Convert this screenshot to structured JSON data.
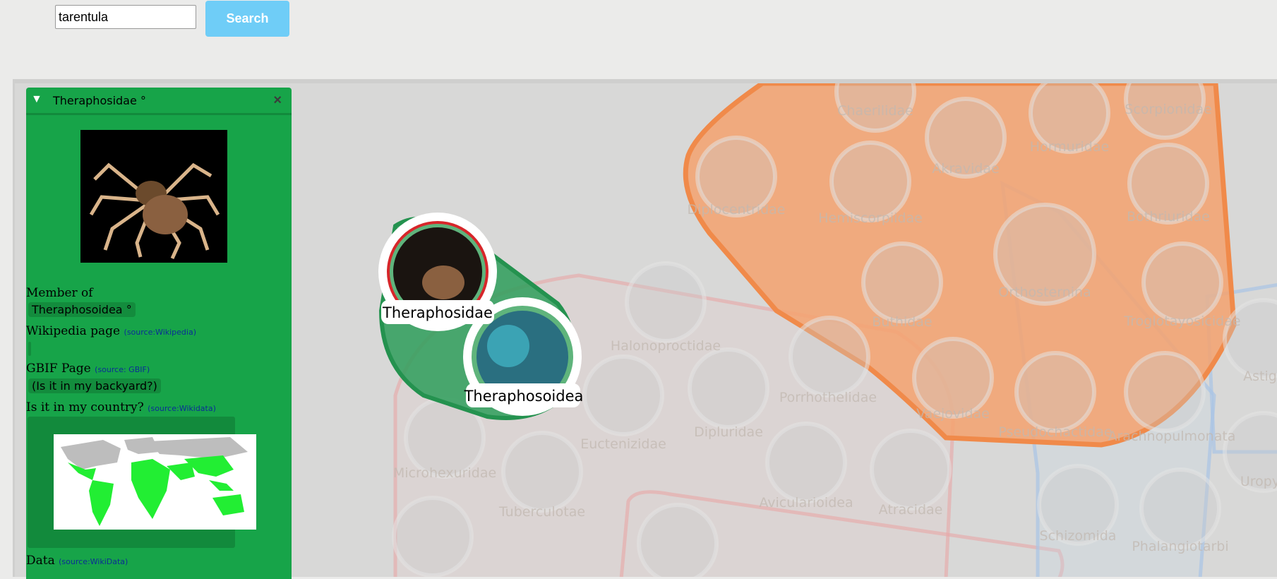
{
  "search": {
    "value": "tarentula",
    "button_label": "Search"
  },
  "panel": {
    "title": "Theraphosidae °",
    "member_of_label": "Member of",
    "member_of_value": "Theraphosoidea °",
    "wikipedia_label": "Wikipedia page",
    "wikipedia_source": "(source:Wikipedia)",
    "gbif_label": "GBIF Page",
    "gbif_source": "(source: GBIF)",
    "gbif_link": "(Is it in my backyard?)",
    "country_label": "Is it in my country?",
    "country_source": "(source:Wikidata)",
    "data_label": "Data",
    "data_source": "(source:WikiData)"
  },
  "nodes": {
    "focused": "Theraphosidae",
    "parent": "Theraphosoidea",
    "faded": [
      "Chaerilidae",
      "Scorpionidae",
      "Hormuridae",
      "Akravidae",
      "Diplocentridae",
      "Hemiscorpiidae",
      "Bothriuridae",
      "Orthosternina",
      "Buthidae",
      "Troglotayosicidae",
      "Halonoproctidae",
      "Porrhothelidae",
      "Vaejovidae",
      "Euctenizidae",
      "Dipluridae",
      "Pseudochactidae",
      "Arachnopulmonata",
      "Astig",
      "Microhexuridae",
      "Tuberculotae",
      "Avicularioidea",
      "Atracidae",
      "Schizomida",
      "Phalangiotarbi",
      "Uropy"
    ]
  },
  "colors": {
    "accent_green": "#17a449",
    "search_button": "#6fcdf7",
    "scorpion_group": "#f4a26e"
  }
}
